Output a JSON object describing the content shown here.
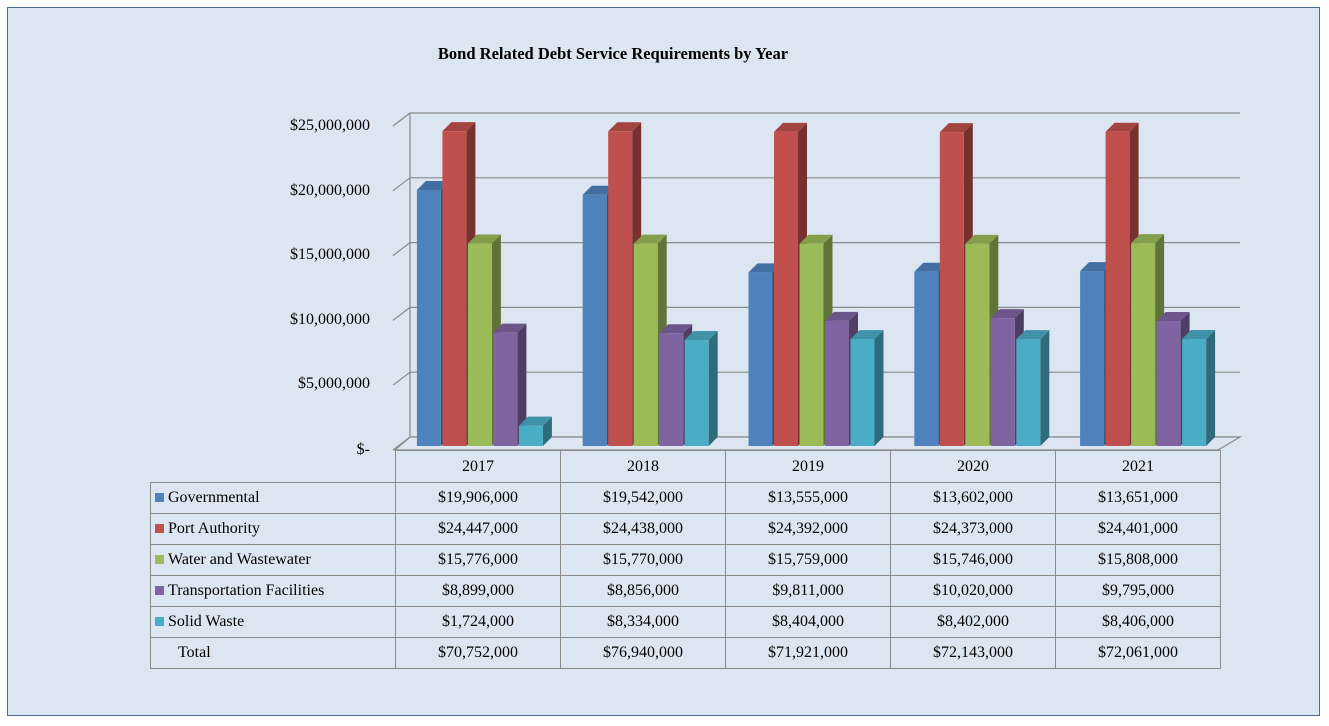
{
  "chart_data": {
    "type": "bar",
    "title": "Bond Related Debt Service Requirements by Year",
    "categories": [
      "2017",
      "2018",
      "2019",
      "2020",
      "2021"
    ],
    "ylim": [
      0,
      25000000
    ],
    "yticks": [
      0,
      5000000,
      10000000,
      15000000,
      20000000,
      25000000
    ],
    "ytick_labels": [
      "$-",
      "$5,000,000",
      "$10,000,000",
      "$15,000,000",
      "$20,000,000",
      "$25,000,000"
    ],
    "grid": true,
    "legend": "data-table",
    "series": [
      {
        "name": "Governmental",
        "color": "#4f81bd",
        "values": [
          19906000,
          19542000,
          13555000,
          13602000,
          13651000
        ],
        "labels": [
          "$19,906,000",
          "$19,542,000",
          "$13,555,000",
          "$13,602,000",
          "$13,651,000"
        ]
      },
      {
        "name": "Port Authority",
        "color": "#c0504d",
        "values": [
          24447000,
          24438000,
          24392000,
          24373000,
          24401000
        ],
        "labels": [
          "$24,447,000",
          "$24,438,000",
          "$24,392,000",
          "$24,373,000",
          "$24,401,000"
        ]
      },
      {
        "name": "Water and Wastewater",
        "color": "#9bbb59",
        "values": [
          15776000,
          15770000,
          15759000,
          15746000,
          15808000
        ],
        "labels": [
          "$15,776,000",
          "$15,770,000",
          "$15,759,000",
          "$15,746,000",
          "$15,808,000"
        ]
      },
      {
        "name": "Transportation Facilities",
        "color": "#8064a2",
        "values": [
          8899000,
          8856000,
          9811000,
          10020000,
          9795000
        ],
        "labels": [
          "$8,899,000",
          "$8,856,000",
          "$9,811,000",
          "$10,020,000",
          "$9,795,000"
        ]
      },
      {
        "name": "Solid Waste",
        "color": "#4bacc6",
        "values": [
          1724000,
          8334000,
          8404000,
          8402000,
          8406000
        ],
        "labels": [
          "$1,724,000",
          "$8,334,000",
          "$8,404,000",
          "$8,402,000",
          "$8,406,000"
        ]
      }
    ],
    "total": {
      "name": "Total",
      "labels": [
        "$70,752,000",
        "$76,940,000",
        "$71,921,000",
        "$72,143,000",
        "$72,061,000"
      ]
    }
  }
}
